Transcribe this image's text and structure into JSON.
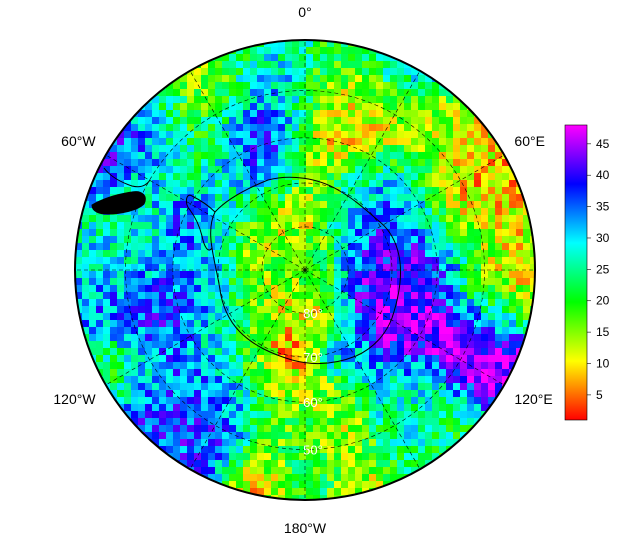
{
  "map": {
    "projection": "south-polar-stereographic",
    "center_latitude": -90,
    "outer_latitude": -40,
    "longitude_labels": [
      {
        "text": "0°",
        "lon": 0
      },
      {
        "text": "60°E",
        "lon": 60
      },
      {
        "text": "120°E",
        "lon": 120
      },
      {
        "text": "180°W",
        "lon": 180
      },
      {
        "text": "120°W",
        "lon": -120
      },
      {
        "text": "60°W",
        "lon": -60
      }
    ],
    "latitude_labels": [
      {
        "text": "80°",
        "lat": -80
      },
      {
        "text": "70°",
        "lat": -70
      },
      {
        "text": "60°",
        "lat": -60
      },
      {
        "text": "50°",
        "lat": -50
      }
    ],
    "graticule": {
      "meridian_step_deg": 30,
      "parallels": [
        -80,
        -70,
        -60,
        -50
      ],
      "style": "dashed"
    }
  },
  "colorbar": {
    "min": 1,
    "max": 48,
    "ticks": [
      5,
      10,
      15,
      20,
      25,
      30,
      35,
      40,
      45
    ],
    "colors": [
      "#ff0000",
      "#ff8000",
      "#ffff00",
      "#80ff00",
      "#00ff00",
      "#00ff80",
      "#00ffff",
      "#0080ff",
      "#0000ff",
      "#8000ff",
      "#ff00ff"
    ]
  }
}
